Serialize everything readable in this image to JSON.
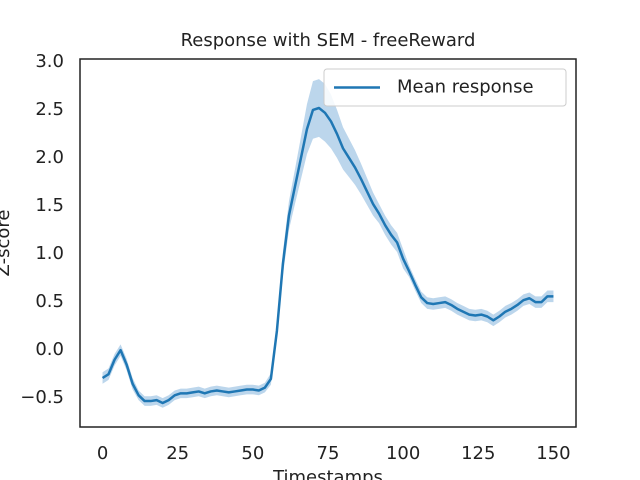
{
  "chart_data": {
    "type": "line",
    "title": "Response with SEM - freeReward",
    "xlabel": "Timestamps",
    "ylabel": "Z-score",
    "x": [
      0,
      2,
      4,
      6,
      8,
      10,
      12,
      14,
      16,
      18,
      20,
      22,
      24,
      26,
      28,
      30,
      32,
      34,
      36,
      38,
      40,
      42,
      44,
      46,
      48,
      50,
      52,
      54,
      56,
      58,
      60,
      62,
      64,
      66,
      68,
      70,
      72,
      74,
      76,
      78,
      80,
      82,
      84,
      86,
      88,
      90,
      92,
      94,
      96,
      98,
      100,
      102,
      104,
      106,
      108,
      110,
      112,
      114,
      116,
      118,
      120,
      122,
      124,
      126,
      128,
      130,
      132,
      134,
      136,
      138,
      140,
      142,
      144,
      146,
      148,
      150
    ],
    "series": [
      {
        "name": "Mean response",
        "color": "#1f77b4",
        "band_color": "#a6c8e6",
        "values": [
          -0.29,
          -0.25,
          -0.1,
          0.0,
          -0.15,
          -0.35,
          -0.47,
          -0.53,
          -0.53,
          -0.52,
          -0.55,
          -0.52,
          -0.47,
          -0.45,
          -0.45,
          -0.44,
          -0.43,
          -0.45,
          -0.43,
          -0.42,
          -0.43,
          -0.44,
          -0.43,
          -0.42,
          -0.41,
          -0.41,
          -0.42,
          -0.39,
          -0.3,
          0.2,
          0.9,
          1.4,
          1.7,
          2.0,
          2.3,
          2.5,
          2.52,
          2.47,
          2.38,
          2.25,
          2.1,
          2.0,
          1.9,
          1.78,
          1.65,
          1.52,
          1.42,
          1.3,
          1.2,
          1.12,
          0.95,
          0.82,
          0.68,
          0.55,
          0.49,
          0.48,
          0.49,
          0.5,
          0.47,
          0.43,
          0.4,
          0.37,
          0.36,
          0.37,
          0.35,
          0.31,
          0.35,
          0.4,
          0.43,
          0.47,
          0.52,
          0.54,
          0.5,
          0.5,
          0.56,
          0.56
        ],
        "sem": [
          0.06,
          0.06,
          0.06,
          0.06,
          0.06,
          0.06,
          0.05,
          0.05,
          0.05,
          0.05,
          0.05,
          0.05,
          0.05,
          0.05,
          0.05,
          0.05,
          0.05,
          0.05,
          0.05,
          0.05,
          0.05,
          0.05,
          0.05,
          0.05,
          0.05,
          0.05,
          0.05,
          0.05,
          0.06,
          0.08,
          0.12,
          0.15,
          0.18,
          0.22,
          0.26,
          0.3,
          0.3,
          0.3,
          0.28,
          0.25,
          0.22,
          0.2,
          0.18,
          0.16,
          0.14,
          0.12,
          0.1,
          0.1,
          0.1,
          0.1,
          0.1,
          0.06,
          0.06,
          0.06,
          0.06,
          0.06,
          0.06,
          0.06,
          0.06,
          0.06,
          0.06,
          0.06,
          0.06,
          0.06,
          0.06,
          0.06,
          0.06,
          0.06,
          0.06,
          0.06,
          0.06,
          0.06,
          0.06,
          0.06,
          0.06,
          0.06
        ]
      }
    ],
    "xlim": [
      -7.5,
      157.5
    ],
    "ylim": [
      -0.8,
      3.03
    ],
    "xticks": [
      0,
      25,
      50,
      75,
      100,
      125,
      150
    ],
    "yticks": [
      {
        "value": -0.5,
        "label": "−0.5"
      },
      {
        "value": 0,
        "label": "0.0"
      },
      0.5,
      {
        "value": 1,
        "label": "1.0"
      },
      1.5,
      {
        "value": 2,
        "label": "2.0"
      },
      2.5,
      {
        "value": 3,
        "label": "3.0"
      }
    ],
    "legend": "upper right"
  }
}
